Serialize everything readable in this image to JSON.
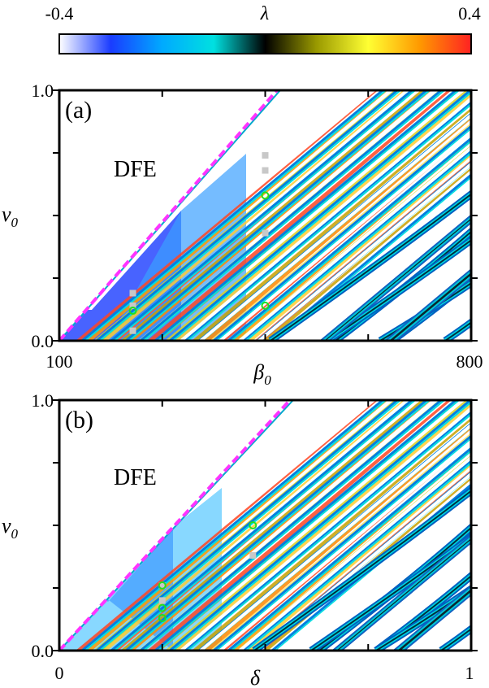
{
  "colorbar": {
    "label": "λ",
    "min_label": "-0.4",
    "max_label": "0.4",
    "range": [
      -0.4,
      0.4
    ],
    "colormap": [
      "#ffffff",
      "#1a3cff",
      "#00aaff",
      "#00e0e0",
      "#000000",
      "#9a9a00",
      "#ffff33",
      "#ff9900",
      "#ff2222"
    ]
  },
  "chart_data": [
    {
      "type": "heatmap",
      "panel_label": "(a)",
      "region_label": "DFE",
      "xlabel": "β",
      "xlabel_sub": "0",
      "ylabel": "v",
      "ylabel_sub": "0",
      "xlim": [
        100,
        800
      ],
      "ylim": [
        0.0,
        1.0
      ],
      "x_tick_labels": [
        "100",
        "800"
      ],
      "y_tick_labels": [
        "0.0",
        "1.0"
      ],
      "x_ticks": [
        100,
        275,
        450,
        625,
        800
      ],
      "y_ticks": [
        0.0,
        0.25,
        0.5,
        0.75,
        1.0
      ],
      "boundary": {
        "style": "dashed",
        "color": "#ff33ff",
        "points": [
          [
            100,
            0.0
          ],
          [
            470,
            1.0
          ]
        ]
      },
      "markers_gray_squares": [
        [
          225,
          0.04
        ],
        [
          225,
          0.14
        ],
        [
          225,
          0.19
        ],
        [
          450,
          0.43
        ],
        [
          450,
          0.68
        ],
        [
          450,
          0.74
        ]
      ],
      "markers_green_circles": [
        [
          225,
          0.12
        ],
        [
          450,
          0.14
        ],
        [
          450,
          0.58
        ]
      ]
    },
    {
      "type": "heatmap",
      "panel_label": "(b)",
      "region_label": "DFE",
      "xlabel": "δ",
      "ylabel": "v",
      "ylabel_sub": "0",
      "xlim": [
        0,
        1
      ],
      "ylim": [
        0.0,
        1.0
      ],
      "x_tick_labels": [
        "0",
        "1"
      ],
      "y_tick_labels": [
        "0.0",
        "1.0"
      ],
      "x_ticks": [
        0,
        0.25,
        0.5,
        0.75,
        1.0
      ],
      "y_ticks": [
        0.0,
        0.25,
        0.5,
        0.75,
        1.0
      ],
      "boundary": {
        "style": "dashed",
        "color": "#ff33ff",
        "points": [
          [
            0,
            0.0
          ],
          [
            0.56,
            1.0
          ]
        ]
      },
      "markers_gray_squares": [
        [
          0.25,
          0.26
        ],
        [
          0.25,
          0.2
        ],
        [
          0.47,
          0.38
        ]
      ],
      "markers_green_circles": [
        [
          0.25,
          0.26
        ],
        [
          0.25,
          0.17
        ],
        [
          0.25,
          0.13
        ],
        [
          0.47,
          0.5
        ]
      ]
    }
  ]
}
